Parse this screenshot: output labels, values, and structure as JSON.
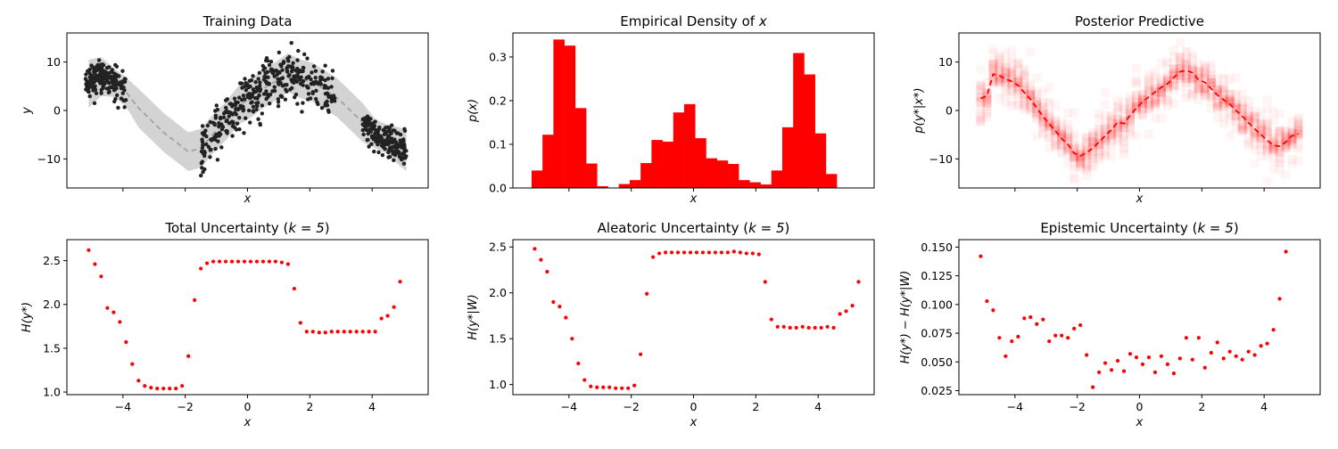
{
  "colors": {
    "red": "#ff0000",
    "dark": "#222222",
    "band": "#d3d3d3",
    "dash": "#999999"
  },
  "chart_data": [
    {
      "id": "training",
      "type": "scatter",
      "title": "Training Data",
      "xlabel": "x",
      "ylabel": "y",
      "xlim": [
        -5.8,
        5.8
      ],
      "ylim": [
        -16,
        16
      ],
      "xticks": [
        -4,
        -2,
        0,
        2,
        4
      ],
      "show_xtick_labels": false,
      "yticks": [
        -10,
        0,
        10
      ],
      "ytick_labels": [
        "−10",
        "0",
        "10"
      ],
      "mean_curve": {
        "x": [
          -5.1,
          -4.7,
          -4.3,
          -3.9,
          -3.5,
          -3.1,
          -2.7,
          -2.3,
          -1.9,
          -1.5,
          -1.1,
          -0.7,
          -0.3,
          0.1,
          0.5,
          0.9,
          1.3,
          1.7,
          2.1,
          2.5,
          2.9,
          3.3,
          3.7,
          4.1,
          4.5,
          4.9,
          5.1
        ],
        "y": [
          5.5,
          7.0,
          5.8,
          3.8,
          0.5,
          -2.0,
          -4.5,
          -6.5,
          -8.5,
          -7.8,
          -4.8,
          -2.2,
          1.0,
          2.5,
          4.5,
          6.0,
          7.8,
          6.5,
          5.8,
          4.2,
          2.5,
          0.0,
          -2.5,
          -4.8,
          -6.0,
          -7.5,
          -8.5
        ]
      },
      "band_halfwidth": [
        5,
        4,
        3,
        3,
        4,
        4,
        4,
        4,
        4,
        4,
        4,
        4,
        4,
        4,
        4,
        4,
        4,
        4,
        4,
        4,
        4,
        4,
        4,
        3,
        3,
        4,
        4
      ],
      "point_groups": [
        {
          "x_range": [
            -5.2,
            -3.9
          ],
          "count": 180,
          "noise": 1.6
        },
        {
          "x_range": [
            -1.5,
            2.8
          ],
          "count": 360,
          "noise": 2.6
        },
        {
          "x_range": [
            3.7,
            5.1
          ],
          "count": 180,
          "noise": 1.6
        }
      ]
    },
    {
      "id": "density",
      "type": "bar",
      "title": "Empirical Density of ",
      "title_var": "x",
      "xlabel": "x",
      "ylabel": "p(x)",
      "xlim": [
        -5.8,
        5.8
      ],
      "ylim": [
        0,
        0.355
      ],
      "xticks": [
        -4,
        -2,
        0,
        2,
        4
      ],
      "show_xtick_labels": false,
      "yticks": [
        0,
        0.1,
        0.2,
        0.3
      ],
      "ytick_labels": [
        "0.0",
        "0.1",
        "0.2",
        "0.3"
      ],
      "bin_edges_start": -5.2,
      "bin_width": 0.35,
      "values": [
        0.04,
        0.122,
        0.34,
        0.326,
        0.183,
        0.056,
        0.004,
        0.0,
        0.009,
        0.018,
        0.057,
        0.11,
        0.106,
        0.173,
        0.192,
        0.114,
        0.068,
        0.063,
        0.055,
        0.018,
        0.013,
        0.008,
        0.04,
        0.139,
        0.309,
        0.26,
        0.125,
        0.032
      ]
    },
    {
      "id": "posterior",
      "type": "line",
      "title": "Posterior Predictive",
      "xlabel": "x",
      "ylabel": "p(y*|x*)",
      "xlim": [
        -5.8,
        5.8
      ],
      "ylim": [
        -16,
        16
      ],
      "xticks": [
        -4,
        -2,
        0,
        2,
        4
      ],
      "show_xtick_labels": false,
      "yticks": [
        -10,
        0,
        10
      ],
      "ytick_labels": [
        "−10",
        "0",
        "10"
      ],
      "x": [
        -5.1,
        -4.9,
        -4.7,
        -4.5,
        -4.3,
        -4.1,
        -3.9,
        -3.7,
        -3.5,
        -3.3,
        -3.1,
        -2.9,
        -2.7,
        -2.5,
        -2.3,
        -2.1,
        -1.9,
        -1.7,
        -1.5,
        -1.3,
        -1.1,
        -0.9,
        -0.7,
        -0.5,
        -0.3,
        -0.1,
        0.1,
        0.3,
        0.5,
        0.7,
        0.9,
        1.1,
        1.3,
        1.5,
        1.7,
        1.9,
        2.1,
        2.3,
        2.5,
        2.7,
        2.9,
        3.1,
        3.3,
        3.5,
        3.7,
        3.9,
        4.1,
        4.3,
        4.5,
        4.7,
        4.9,
        5.1
      ],
      "y": [
        2.5,
        3.0,
        7.5,
        7.2,
        6.5,
        6.0,
        5.2,
        3.7,
        2.3,
        0.5,
        -1.2,
        -2.8,
        -4.2,
        -5.8,
        -7.0,
        -8.8,
        -9.4,
        -8.7,
        -7.8,
        -6.5,
        -5.2,
        -4.0,
        -2.4,
        -2.7,
        -1.0,
        0.5,
        1.8,
        2.8,
        3.8,
        4.8,
        5.5,
        6.8,
        8.0,
        8.3,
        7.8,
        6.3,
        5.8,
        4.5,
        3.2,
        2.2,
        1.3,
        0.0,
        -1.2,
        -2.5,
        -3.8,
        -5.0,
        -6.2,
        -7.2,
        -7.4,
        -6.5,
        -5.2,
        -4.8
      ],
      "spread": 3.5
    },
    {
      "id": "total",
      "type": "scatter",
      "title": "Total Uncertainty (",
      "title_math": "k = 5",
      "title_end": ")",
      "xlabel": "x",
      "ylabel": "H(y*)",
      "xlim": [
        -5.8,
        5.8
      ],
      "ylim": [
        0.97,
        2.74
      ],
      "xticks": [
        -4,
        -2,
        0,
        2,
        4
      ],
      "xtick_labels": [
        "−4",
        "−2",
        "0",
        "2",
        "4"
      ],
      "show_xtick_labels": true,
      "yticks": [
        1.0,
        1.5,
        2.0,
        2.5
      ],
      "ytick_labels": [
        "1.0",
        "1.5",
        "2.0",
        "2.5"
      ],
      "x_start": -5.1,
      "x_step": 0.2,
      "y": [
        2.62,
        2.46,
        2.32,
        1.96,
        1.91,
        1.8,
        1.57,
        1.32,
        1.13,
        1.07,
        1.05,
        1.04,
        1.04,
        1.04,
        1.04,
        1.07,
        1.41,
        2.05,
        2.41,
        2.47,
        2.49,
        2.49,
        2.49,
        2.49,
        2.49,
        2.49,
        2.49,
        2.49,
        2.49,
        2.49,
        2.49,
        2.48,
        2.46,
        2.18,
        1.79,
        1.69,
        1.69,
        1.68,
        1.68,
        1.69,
        1.69,
        1.69,
        1.69,
        1.69,
        1.69,
        1.69,
        1.69,
        1.84,
        1.87,
        1.97,
        2.26
      ]
    },
    {
      "id": "aleatoric",
      "type": "scatter",
      "title": "Aleatoric Uncertainty (",
      "title_math": "k = 5",
      "title_end": ")",
      "xlabel": "x",
      "ylabel": "H(y*|W)",
      "xlim": [
        -5.8,
        5.8
      ],
      "ylim": [
        0.89,
        2.58
      ],
      "xticks": [
        -4,
        -2,
        0,
        2,
        4
      ],
      "xtick_labels": [
        "−4",
        "−2",
        "0",
        "2",
        "4"
      ],
      "show_xtick_labels": true,
      "yticks": [
        1.0,
        1.5,
        2.0,
        2.5
      ],
      "ytick_labels": [
        "1.0",
        "1.5",
        "2.0",
        "2.5"
      ],
      "x_start": -5.1,
      "x_step": 0.2,
      "y": [
        2.48,
        2.36,
        2.23,
        1.9,
        1.85,
        1.73,
        1.5,
        1.23,
        1.05,
        0.98,
        0.97,
        0.97,
        0.97,
        0.96,
        0.96,
        0.96,
        0.99,
        1.33,
        1.99,
        2.39,
        2.43,
        2.44,
        2.44,
        2.44,
        2.44,
        2.44,
        2.44,
        2.44,
        2.44,
        2.44,
        2.44,
        2.44,
        2.45,
        2.44,
        2.43,
        2.43,
        2.42,
        2.12,
        1.71,
        1.63,
        1.63,
        1.62,
        1.62,
        1.63,
        1.62,
        1.62,
        1.62,
        1.63,
        1.62,
        1.77,
        1.8,
        1.86,
        2.12
      ]
    },
    {
      "id": "epistemic",
      "type": "scatter",
      "title": "Epistemic Uncertainty (",
      "title_math": "k = 5",
      "title_end": ")",
      "xlabel": "x",
      "ylabel": "H(y*) − H(y*|W)",
      "xlim": [
        -5.8,
        5.8
      ],
      "ylim": [
        0.0215,
        0.1565
      ],
      "xticks": [
        -4,
        -2,
        0,
        2,
        4
      ],
      "xtick_labels": [
        "−4",
        "−2",
        "0",
        "2",
        "4"
      ],
      "show_xtick_labels": true,
      "yticks": [
        0.025,
        0.05,
        0.075,
        0.1,
        0.125,
        0.15
      ],
      "ytick_labels": [
        "0.025",
        "0.050",
        "0.075",
        "0.100",
        "0.125",
        "0.150"
      ],
      "x_start": -5.1,
      "x_step": 0.2,
      "y": [
        0.142,
        0.103,
        0.095,
        0.071,
        0.055,
        0.068,
        0.072,
        0.088,
        0.089,
        0.083,
        0.087,
        0.068,
        0.073,
        0.073,
        0.071,
        0.079,
        0.082,
        0.056,
        0.028,
        0.041,
        0.049,
        0.043,
        0.051,
        0.042,
        0.057,
        0.054,
        0.048,
        0.054,
        0.041,
        0.055,
        0.048,
        0.04,
        0.053,
        0.071,
        0.052,
        0.071,
        0.045,
        0.058,
        0.067,
        0.053,
        0.059,
        0.055,
        0.052,
        0.059,
        0.056,
        0.064,
        0.066,
        0.078,
        0.105,
        0.146
      ]
    }
  ]
}
